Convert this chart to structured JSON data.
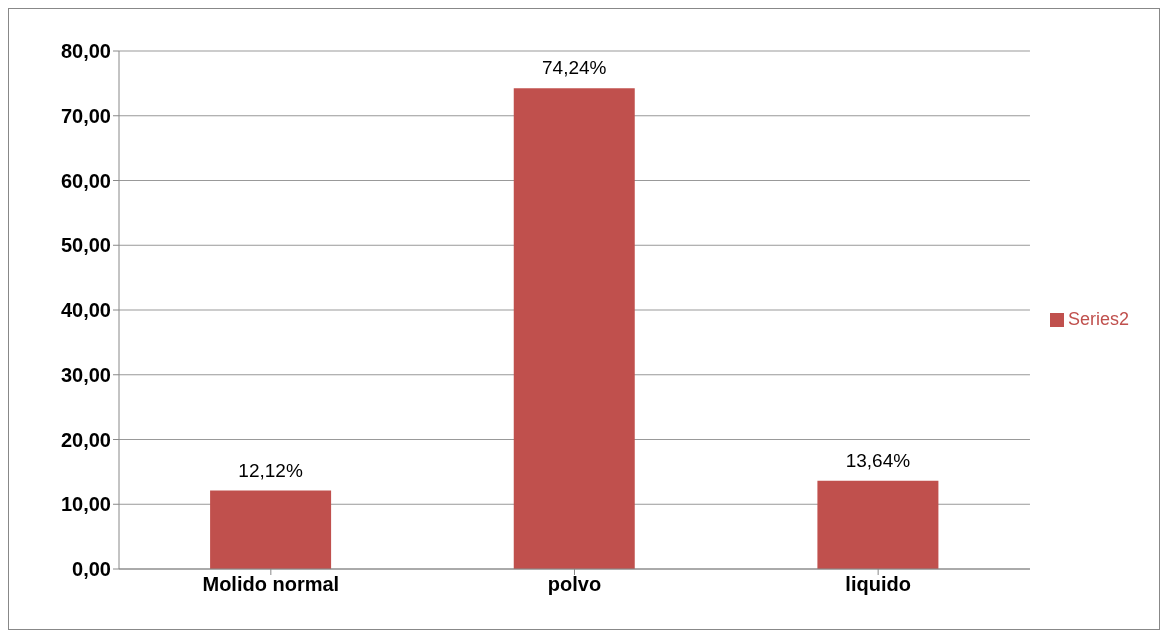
{
  "chart_data": {
    "type": "bar",
    "categories": [
      "Molido normal",
      "polvo",
      "liquido"
    ],
    "series": [
      {
        "name": "Series2",
        "color": "#c0504d",
        "values": [
          12.12,
          74.24,
          13.64
        ],
        "value_labels": [
          "12,12%",
          "74,24%",
          "13,64%"
        ]
      }
    ],
    "ylim": [
      0,
      80
    ],
    "yticks": [
      {
        "value": 0,
        "label": "0,00"
      },
      {
        "value": 10,
        "label": "10,00"
      },
      {
        "value": 20,
        "label": "20,00"
      },
      {
        "value": 30,
        "label": "30,00"
      },
      {
        "value": 40,
        "label": "40,00"
      },
      {
        "value": 50,
        "label": "50,00"
      },
      {
        "value": 60,
        "label": "60,00"
      },
      {
        "value": 70,
        "label": "70,00"
      },
      {
        "value": 80,
        "label": "80,00"
      }
    ],
    "grid": "y",
    "legend": "right"
  }
}
